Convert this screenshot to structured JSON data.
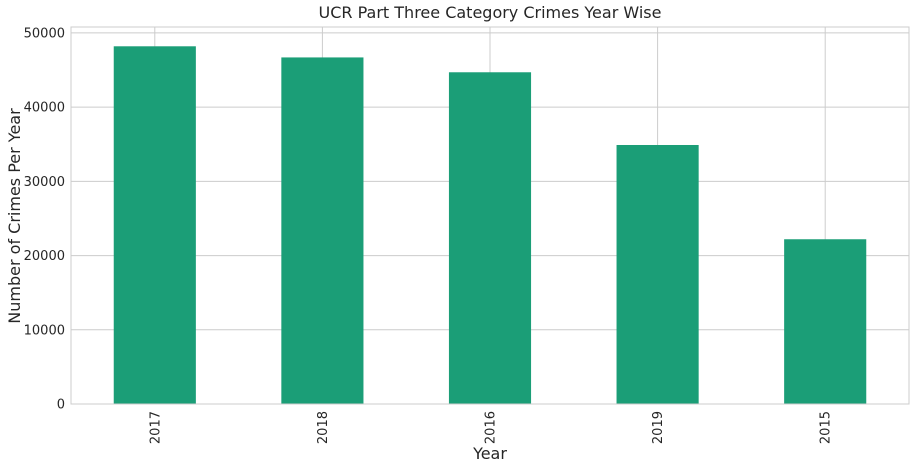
{
  "chart_data": {
    "type": "bar",
    "title": "UCR Part Three Category Crimes Year Wise",
    "xlabel": "Year",
    "ylabel": "Number of Crimes Per Year",
    "categories": [
      "2017",
      "2018",
      "2016",
      "2019",
      "2015"
    ],
    "values": [
      48200,
      46700,
      44700,
      34900,
      22200
    ],
    "ylim": [
      0,
      50800
    ],
    "yticks": [
      "0",
      "10000",
      "20000",
      "30000",
      "40000",
      "50000"
    ],
    "grid": true,
    "legend": "none",
    "bar_color": "#1b9e77"
  }
}
